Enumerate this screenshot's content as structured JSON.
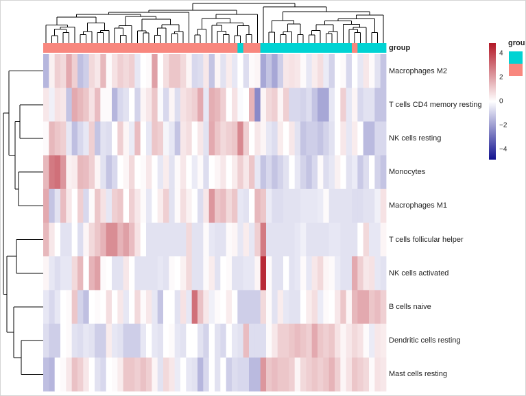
{
  "chart_data": {
    "type": "heatmap",
    "rows": [
      "Macrophages M2",
      "T cells CD4 memory resting",
      "NK cells resting",
      "Monocytes",
      "Macrophages M1",
      "T cells follicular helper",
      "NK cells activated",
      "B cells naive",
      "Dendritic cells resting",
      "Mast cells resting"
    ],
    "n_cols": 60,
    "values": [
      [
        -1.5,
        0.3,
        1.0,
        0.8,
        1.8,
        1.0,
        -1.3,
        -1.0,
        0.8,
        0.5,
        1.5,
        0.1,
        0.6,
        1.0,
        0.8,
        1.0,
        -0.5,
        0.0,
        0.1,
        2.0,
        0.0,
        0.7,
        1.2,
        1.2,
        0.8,
        0.2,
        -0.8,
        -0.7,
        0.5,
        -1.2,
        0.2,
        -0.6,
        0.4,
        -0.5,
        0.0,
        -0.7,
        0.1,
        0.2,
        -1.8,
        -1.2,
        -1.8,
        -1.0,
        0.5,
        0.6,
        0.5,
        0.1,
        -0.5,
        0.4,
        0.7,
        -0.4,
        -0.9,
        0.0,
        0.1,
        -0.8,
        0.0,
        -0.5,
        0.5,
        0.1,
        -0.6,
        -1.2
      ],
      [
        0.5,
        -0.3,
        0.6,
        0.5,
        -1.2,
        1.8,
        1.5,
        1.2,
        0.6,
        1.4,
        0.1,
        0.1,
        -1.5,
        -0.8,
        -0.6,
        0.0,
        -0.9,
        0.2,
        0.5,
        1.2,
        -0.1,
        -0.8,
        0.2,
        -0.7,
        0.6,
        0.8,
        1.0,
        1.8,
        -0.5,
        1.7,
        1.5,
        1.0,
        0.0,
        0.6,
        -0.1,
        0.0,
        1.6,
        -2.4,
        0.2,
        0.8,
        1.0,
        0.2,
        1.0,
        -0.8,
        -0.8,
        -0.9,
        -0.7,
        -1.2,
        -1.8,
        -1.8,
        -0.5,
        0.0,
        1.0,
        -0.5,
        0.2,
        -0.8,
        -0.6,
        -0.6,
        -1.2,
        -1.2
      ],
      [
        0.1,
        1.5,
        1.2,
        1.0,
        -0.5,
        -1.3,
        -0.8,
        -0.5,
        1.0,
        -1.2,
        -0.6,
        -0.7,
        0.0,
        1.0,
        0.2,
        -0.4,
        1.4,
        0.0,
        -0.5,
        1.2,
        1.0,
        -0.2,
        -0.5,
        -1.2,
        0.5,
        0.7,
        0.0,
        0.5,
        -0.6,
        1.8,
        1.2,
        0.8,
        1.0,
        1.2,
        2.5,
        1.0,
        0.0,
        0.5,
        0.2,
        -0.5,
        -0.7,
        0.4,
        0.0,
        0.5,
        -0.6,
        -1.2,
        -1.0,
        -1.0,
        -1.2,
        -0.9,
        -0.6,
        0.0,
        0.5,
        -0.5,
        0.4,
        0.0,
        -1.4,
        -1.4,
        -0.8,
        -0.8
      ],
      [
        1.5,
        2.8,
        3.0,
        2.2,
        0.3,
        0.4,
        1.5,
        1.4,
        1.0,
        0.2,
        -0.6,
        -1.2,
        -0.8,
        0.0,
        0.2,
        0.8,
        0.0,
        0.1,
        0.5,
        0.0,
        -0.5,
        0.4,
        -0.6,
        0.1,
        0.5,
        0.0,
        -0.4,
        0.1,
        -0.7,
        0.0,
        0.2,
        0.5,
        0.0,
        0.4,
        1.0,
        0.5,
        1.2,
        -0.5,
        -1.2,
        -0.8,
        -1.2,
        -0.9,
        -0.6,
        0.0,
        -0.5,
        -0.9,
        -1.2,
        -0.8,
        0.1,
        -0.7,
        -0.5,
        0.3,
        0.0,
        -0.6,
        -0.4,
        -1.1,
        -0.7,
        0.0,
        -0.9,
        -1.2
      ],
      [
        1.8,
        -1.2,
        -0.6,
        1.4,
        0.5,
        0.0,
        1.0,
        -0.8,
        0.1,
        1.2,
        0.6,
        -0.5,
        1.0,
        1.2,
        0.0,
        1.0,
        0.5,
        0.1,
        -0.5,
        0.0,
        0.4,
        1.0,
        -0.6,
        0.1,
        0.7,
        0.3,
        0.0,
        -0.7,
        0.5,
        2.2,
        1.2,
        1.4,
        0.8,
        1.2,
        -0.5,
        -0.6,
        0.0,
        1.5,
        1.2,
        -0.4,
        -0.7,
        -0.7,
        -0.6,
        -0.6,
        -0.6,
        -0.5,
        -0.5,
        -0.5,
        -0.4,
        0.1,
        -0.6,
        -0.6,
        -0.6,
        -0.6,
        -0.7,
        -0.7,
        -0.6,
        -0.6,
        -0.3,
        0.6
      ],
      [
        1.5,
        0.5,
        0.0,
        -0.6,
        -0.6,
        0.0,
        -0.7,
        0.2,
        0.8,
        1.2,
        1.6,
        2.4,
        2.4,
        1.6,
        2.0,
        1.4,
        0.6,
        0.0,
        -0.6,
        -0.6,
        -0.6,
        -0.6,
        -0.6,
        -0.6,
        -0.6,
        0.8,
        -0.6,
        -0.6,
        0.1,
        -0.5,
        -0.6,
        -0.6,
        0.1,
        0.2,
        -0.5,
        0.4,
        -0.5,
        1.0,
        2.8,
        -0.6,
        -0.6,
        -0.6,
        -0.6,
        -0.6,
        -0.5,
        -0.3,
        -0.6,
        -0.6,
        -0.6,
        -0.6,
        -0.5,
        -0.5,
        -0.6,
        -0.6,
        -0.6,
        0.0,
        0.8,
        -0.5,
        -0.5,
        0.2
      ],
      [
        0.2,
        -0.5,
        -0.7,
        -0.5,
        -0.5,
        0.8,
        1.5,
        0.0,
        1.6,
        2.0,
        0.1,
        0.0,
        -0.6,
        -0.6,
        0.5,
        0.0,
        -0.6,
        -0.6,
        -0.6,
        -0.6,
        -0.5,
        -0.6,
        0.1,
        0.0,
        0.3,
        0.8,
        -0.6,
        -0.6,
        0.1,
        0.4,
        -0.6,
        0.0,
        0.1,
        -0.6,
        -0.6,
        -0.5,
        -0.5,
        0.2,
        4.5,
        0.1,
        -0.6,
        -0.6,
        0.0,
        -0.6,
        -0.5,
        0.1,
        -0.5,
        0.5,
        0.8,
        0.2,
        0.1,
        -0.4,
        -0.6,
        -0.6,
        1.8,
        1.0,
        0.5,
        0.6,
        -0.5,
        -0.6
      ],
      [
        -0.5,
        -0.8,
        -0.5,
        0.0,
        0.1,
        1.2,
        -0.9,
        -1.3,
        0.0,
        0.1,
        0.0,
        0.7,
        0.0,
        0.5,
        -0.5,
        0.0,
        0.8,
        0.1,
        0.5,
        -0.5,
        -1.2,
        0.0,
        0.0,
        -0.6,
        0.6,
        -0.5,
        3.0,
        1.3,
        0.5,
        -0.3,
        0.1,
        0.0,
        0.4,
        0.0,
        -1.0,
        -1.0,
        -1.0,
        -1.0,
        0.8,
        0.1,
        -0.6,
        0.4,
        -0.5,
        -0.6,
        -0.6,
        0.0,
        0.4,
        0.7,
        -0.4,
        0.1,
        0.0,
        0.5,
        1.2,
        0.2,
        1.5,
        1.8,
        1.8,
        1.2,
        1.4,
        1.0
      ],
      [
        -0.7,
        -1.0,
        -1.0,
        0.0,
        0.1,
        -0.6,
        -0.7,
        -0.5,
        -0.6,
        -1.0,
        -1.0,
        0.4,
        -0.5,
        -0.6,
        -1.0,
        -1.0,
        -1.0,
        -0.5,
        0.0,
        -0.5,
        -0.6,
        0.0,
        0.1,
        -0.5,
        -0.6,
        0.0,
        0.0,
        -0.6,
        -0.9,
        0.0,
        -0.6,
        -0.8,
        0.0,
        -0.5,
        -0.6,
        1.4,
        -0.7,
        -0.7,
        -0.7,
        0.1,
        0.5,
        1.0,
        1.0,
        1.2,
        1.4,
        1.2,
        1.0,
        1.8,
        1.2,
        1.0,
        1.2,
        0.6,
        0.2,
        0.5,
        0.8,
        0.6,
        0.1,
        -0.4,
        0.5,
        0.4
      ],
      [
        -1.3,
        -1.5,
        0.0,
        0.1,
        0.5,
        1.3,
        1.0,
        0.5,
        0.0,
        -0.6,
        -0.8,
        0.0,
        0.1,
        0.4,
        1.2,
        1.2,
        1.0,
        1.3,
        1.0,
        0.2,
        -0.6,
        0.8,
        0.5,
        -0.4,
        0.0,
        -0.5,
        -0.6,
        -1.5,
        -0.8,
        0.0,
        -0.6,
        0.0,
        -1.0,
        -0.7,
        -0.8,
        -0.8,
        -1.4,
        -1.4,
        2.2,
        1.2,
        1.4,
        1.2,
        1.2,
        1.0,
        0.2,
        0.8,
        1.0,
        1.2,
        1.0,
        1.2,
        1.6,
        1.0,
        0.2,
        0.6,
        1.2,
        1.0,
        0.8,
        0.1,
        0.6,
        0.5
      ]
    ],
    "col_annotation": {
      "title": "group",
      "colors": {
        "g1": "#F8877E",
        "g2": "#00D3D3"
      },
      "group_segments": [
        {
          "cols": [
            1,
            34
          ],
          "class": "g1"
        },
        {
          "cols": [
            35,
            35
          ],
          "class": "g2"
        },
        {
          "cols": [
            36,
            38
          ],
          "class": "g1"
        },
        {
          "cols": [
            39,
            54
          ],
          "class": "g2"
        },
        {
          "cols": [
            55,
            55
          ],
          "class": "g1"
        },
        {
          "cols": [
            56,
            60
          ],
          "class": "g2"
        }
      ]
    },
    "row_dendrogram": {
      "x": 4,
      "children": [
        {
          "x": 12,
          "children": [
            {
              "leaf": 1
            },
            {
              "x": 21,
              "children": [
                {
                  "x": 28,
                  "children": [
                    {
                      "leaf": 2
                    },
                    {
                      "leaf": 3
                    }
                  ]
                },
                {
                  "x": 26,
                  "children": [
                    {
                      "leaf": 4
                    },
                    {
                      "leaf": 5
                    }
                  ]
                }
              ]
            }
          ]
        },
        {
          "x": 9,
          "children": [
            {
              "x": 23,
              "children": [
                {
                  "leaf": 6
                },
                {
                  "leaf": 7
                }
              ]
            },
            {
              "x": 19,
              "children": [
                {
                  "leaf": 8
                },
                {
                  "x": 30,
                  "children": [
                    {
                      "leaf": 9
                    },
                    {
                      "leaf": 10
                    }
                  ]
                }
              ]
            }
          ]
        }
      ]
    },
    "colorscale": {
      "vmin": -4.86,
      "vmax": 4.86,
      "neg_color": "#0A0A8C",
      "mid_color": "#FFFFFF",
      "pos_color": "#B01120"
    },
    "colorbar": {
      "ticks": [
        {
          "value": 4,
          "label": "4"
        },
        {
          "value": 2,
          "label": "2"
        },
        {
          "value": 0,
          "label": "0"
        },
        {
          "value": -2,
          "label": "−2"
        },
        {
          "value": -4,
          "label": "−4"
        }
      ]
    },
    "group_legend": {
      "title": "group",
      "swatches": [
        "#00D3D3",
        "#F8877E"
      ]
    }
  }
}
